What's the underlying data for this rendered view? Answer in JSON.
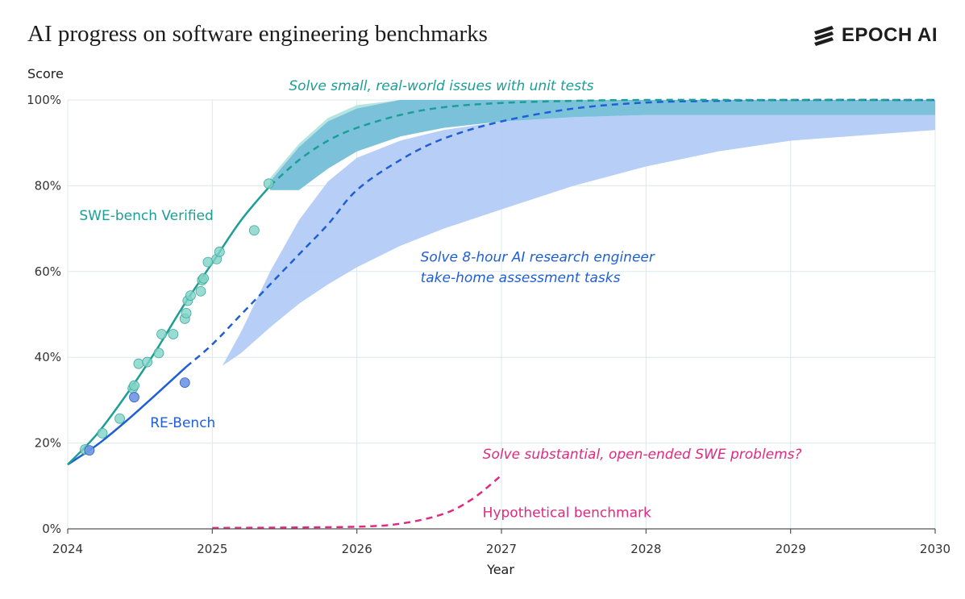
{
  "title": "AI progress on software engineering benchmarks",
  "brand": {
    "name": "EPOCH AI",
    "icon": "epoch-logo-icon",
    "color": "#1d1d1d"
  },
  "chart_data": {
    "type": "line",
    "xlabel": "Year",
    "ylabel": "Score",
    "xlim": [
      2024,
      2030
    ],
    "ylim": [
      0,
      100
    ],
    "x_ticks": [
      "2024",
      "2025",
      "2026",
      "2027",
      "2028",
      "2029",
      "2030"
    ],
    "y_ticks": [
      "0%",
      "20%",
      "40%",
      "60%",
      "80%",
      "100%"
    ],
    "grid": true,
    "colors": {
      "swe": "#1b9e96",
      "swe_points": "#7fd3c6",
      "re": "#1f5fd6",
      "re_points": "#6f95e6",
      "re_band": "#b3cbf5",
      "swe_band": "#74bcd9",
      "hyp": "#e0297f"
    },
    "series": [
      {
        "name": "SWE-bench Verified",
        "fit": {
          "x": [
            2024.0,
            2024.2,
            2024.4,
            2024.6,
            2024.8,
            2025.0,
            2025.2,
            2025.4
          ],
          "y": [
            15,
            22,
            31,
            41,
            52,
            62,
            72,
            80
          ]
        },
        "forecast": {
          "x": [
            2025.4,
            2025.6,
            2025.8,
            2026.0,
            2026.3,
            2026.6,
            2027.0,
            2027.5,
            2028.0,
            2029.0,
            2030.0
          ],
          "y": [
            80,
            86,
            90.5,
            93.5,
            96.5,
            98.3,
            99.3,
            99.8,
            100,
            100,
            100
          ]
        },
        "band": {
          "x": [
            2025.4,
            2025.6,
            2025.8,
            2026.0,
            2026.3,
            2026.6,
            2027.0,
            2027.5,
            2028.0,
            2029.0,
            2030.0
          ],
          "low": [
            79,
            79,
            84,
            88,
            91.5,
            93.5,
            95,
            96,
            96.5,
            96.5,
            96.5
          ],
          "high": [
            81,
            89,
            95,
            98,
            100,
            100,
            100,
            100,
            100,
            100,
            100
          ]
        },
        "points": [
          {
            "x": 2024.12,
            "y": 18.5
          },
          {
            "x": 2024.24,
            "y": 22.3
          },
          {
            "x": 2024.36,
            "y": 25.7
          },
          {
            "x": 2024.45,
            "y": 32.8
          },
          {
            "x": 2024.46,
            "y": 33.4
          },
          {
            "x": 2024.49,
            "y": 38.5
          },
          {
            "x": 2024.55,
            "y": 38.9
          },
          {
            "x": 2024.63,
            "y": 41.0
          },
          {
            "x": 2024.65,
            "y": 45.4
          },
          {
            "x": 2024.73,
            "y": 45.4
          },
          {
            "x": 2024.81,
            "y": 49.0
          },
          {
            "x": 2024.82,
            "y": 50.3
          },
          {
            "x": 2024.83,
            "y": 53.2
          },
          {
            "x": 2024.85,
            "y": 54.4
          },
          {
            "x": 2024.92,
            "y": 55.4
          },
          {
            "x": 2024.93,
            "y": 58.0
          },
          {
            "x": 2024.94,
            "y": 58.4
          },
          {
            "x": 2024.97,
            "y": 62.2
          },
          {
            "x": 2025.03,
            "y": 62.9
          },
          {
            "x": 2025.05,
            "y": 64.6
          },
          {
            "x": 2025.29,
            "y": 69.6
          },
          {
            "x": 2025.39,
            "y": 80.5
          }
        ]
      },
      {
        "name": "RE-Bench",
        "fit": {
          "x": [
            2024.0,
            2024.2,
            2024.4,
            2024.6,
            2024.82
          ],
          "y": [
            15,
            19.5,
            25,
            31,
            37.8
          ]
        },
        "forecast": {
          "x": [
            2024.82,
            2025.0,
            2025.2,
            2025.4,
            2025.6,
            2025.8,
            2026.0,
            2026.3,
            2026.6,
            2027.0,
            2027.5,
            2028.0,
            2028.5,
            2029.0,
            2030.0
          ],
          "y": [
            37.8,
            43,
            50,
            57,
            64,
            71,
            79,
            86,
            91,
            95,
            98,
            99.4,
            99.8,
            100,
            100
          ]
        },
        "band": {
          "x": [
            2024.82,
            2025.07,
            2025.2,
            2025.4,
            2025.6,
            2025.8,
            2026.0,
            2026.3,
            2026.6,
            2027.0,
            2027.5,
            2028.0,
            2028.5,
            2029.0,
            2030.0
          ],
          "low": [
            38,
            38,
            41,
            47,
            52.5,
            57,
            61,
            66,
            70,
            74.5,
            80,
            84.5,
            88,
            90.5,
            93
          ],
          "high": [
            38,
            38,
            46,
            60,
            72,
            81,
            86.5,
            90.5,
            93,
            95,
            96,
            96.5,
            96.5,
            96.5,
            96.5
          ]
        },
        "points": [
          {
            "x": 2024.15,
            "y": 18.3
          },
          {
            "x": 2024.46,
            "y": 30.7
          },
          {
            "x": 2024.81,
            "y": 34.1
          }
        ]
      },
      {
        "name": "Hypothetical benchmark",
        "forecast": {
          "x": [
            2025.0,
            2025.5,
            2026.0,
            2026.3,
            2026.6,
            2026.8,
            2027.0
          ],
          "y": [
            0.2,
            0.3,
            0.5,
            1.2,
            3.5,
            7.0,
            12.5
          ]
        }
      }
    ],
    "annotations": [
      {
        "text": "SWE-bench Verified",
        "x": 2024.08,
        "y": 72,
        "color": "#1b9e96",
        "italic": false
      },
      {
        "text": "RE-Bench",
        "x": 2024.57,
        "y": 23.7,
        "color": "#1f5fd6",
        "italic": false
      },
      {
        "text": "Solve small, real-world issues with unit tests",
        "x": 2025.53,
        "y": 102.3,
        "color": "#1b9e96",
        "italic": true
      },
      {
        "text": "Solve 8-hour AI research engineer",
        "x": 2026.44,
        "y": 62.3,
        "color": "#1f5fd6",
        "italic": true
      },
      {
        "text": "take-home assessment tasks",
        "x": 2026.44,
        "y": 57.5,
        "color": "#1f5fd6",
        "italic": true
      },
      {
        "text": "Solve substantial, open-ended SWE problems?",
        "x": 2026.87,
        "y": 16.4,
        "color": "#e0297f",
        "italic": true
      },
      {
        "text": "Hypothetical benchmark",
        "x": 2026.87,
        "y": 2.7,
        "color": "#e0297f",
        "italic": false
      }
    ]
  }
}
